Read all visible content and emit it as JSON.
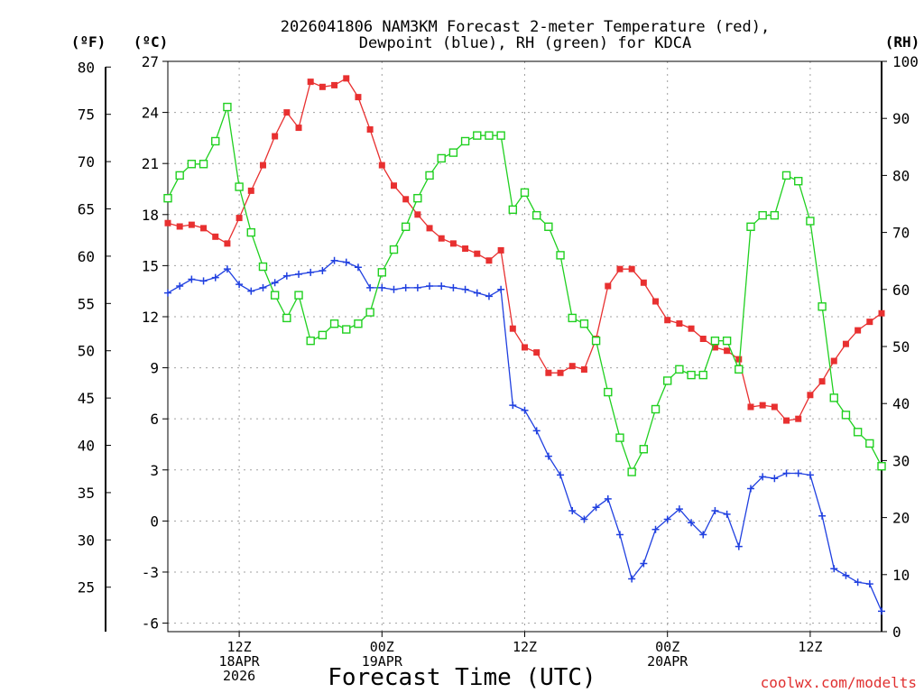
{
  "chart_data": {
    "type": "line",
    "title": "2026041806 NAM3KM Forecast 2-meter Temperature (red), Dewpoint (blue), RH (green) for KDCA",
    "title_lines": [
      "2026041806 NAM3KM Forecast 2-meter Temperature (red),",
      "Dewpoint (blue), RH (green) for KDCA"
    ],
    "xlabel": "Forecast Time (UTC)",
    "unit_labels": {
      "fahrenheit": "(ºF)",
      "celsius": "(ºC)",
      "rh": "(RH)"
    },
    "xlim_hours": [
      0,
      60
    ],
    "x_ticks": [
      {
        "hour": 6,
        "lines": [
          "12Z",
          "18APR",
          "2026"
        ]
      },
      {
        "hour": 18,
        "lines": [
          "00Z",
          "19APR"
        ]
      },
      {
        "hour": 30,
        "lines": [
          "12Z"
        ]
      },
      {
        "hour": 42,
        "lines": [
          "00Z",
          "20APR"
        ]
      },
      {
        "hour": 54,
        "lines": [
          "12Z"
        ]
      }
    ],
    "celsius_axis": {
      "ylim": [
        -6.5,
        27
      ],
      "ticks": [
        27,
        24,
        21,
        18,
        15,
        12,
        9,
        6,
        3,
        0,
        -3,
        -6
      ]
    },
    "fahrenheit_axis": {
      "ticks": [
        80,
        75,
        70,
        65,
        60,
        55,
        50,
        45,
        40,
        35,
        30,
        25
      ]
    },
    "rh_axis": {
      "ylim": [
        0,
        100
      ],
      "ticks": [
        100,
        90,
        80,
        70,
        60,
        50,
        40,
        30,
        20,
        10,
        0
      ]
    },
    "hours": [
      0,
      1,
      2,
      3,
      4,
      5,
      6,
      7,
      8,
      9,
      10,
      11,
      12,
      13,
      14,
      15,
      16,
      17,
      18,
      19,
      20,
      21,
      22,
      23,
      24,
      25,
      26,
      27,
      28,
      29,
      30,
      31,
      32,
      33,
      34,
      35,
      36,
      37,
      38,
      39,
      40,
      41,
      42,
      43,
      44,
      45,
      46,
      47,
      48,
      49,
      50,
      51,
      52,
      53,
      54,
      55,
      56,
      57,
      58,
      59,
      60
    ],
    "series": [
      {
        "name": "2-meter Temperature",
        "color": "#e83030",
        "axis": "celsius",
        "marker": "filled-square",
        "values": [
          17.5,
          17.3,
          17.4,
          17.2,
          16.7,
          16.3,
          17.8,
          19.4,
          20.9,
          22.6,
          24.0,
          23.1,
          25.8,
          25.5,
          25.6,
          26.0,
          24.9,
          23.0,
          20.9,
          19.7,
          18.9,
          18.0,
          17.2,
          16.6,
          16.3,
          16.0,
          15.7,
          15.3,
          15.9,
          11.3,
          10.2,
          9.9,
          8.7,
          8.7,
          9.1,
          8.9,
          10.7,
          13.8,
          14.8,
          14.8,
          14.0,
          12.9,
          11.8,
          11.6,
          11.3,
          10.7,
          10.2,
          10.0,
          9.5,
          6.7,
          6.8,
          6.7,
          5.9,
          6.0,
          7.4,
          8.2,
          9.4,
          10.4,
          11.2,
          11.7,
          12.2
        ]
      },
      {
        "name": "Dewpoint",
        "color": "#2040e0",
        "axis": "celsius",
        "marker": "plus",
        "values": [
          13.4,
          13.8,
          14.2,
          14.1,
          14.3,
          14.8,
          13.9,
          13.5,
          13.7,
          14.0,
          14.4,
          14.5,
          14.6,
          14.7,
          15.3,
          15.2,
          14.9,
          13.7,
          13.7,
          13.6,
          13.7,
          13.7,
          13.8,
          13.8,
          13.7,
          13.6,
          13.4,
          13.2,
          13.6,
          6.8,
          6.5,
          5.3,
          3.8,
          2.7,
          0.6,
          0.1,
          0.8,
          1.3,
          -0.8,
          -3.4,
          -2.5,
          -0.5,
          0.1,
          0.7,
          -0.1,
          -0.8,
          0.6,
          0.4,
          -1.5,
          1.9,
          2.6,
          2.5,
          2.8,
          2.8,
          2.7,
          0.3,
          -2.8,
          -3.2,
          -3.6,
          -3.7,
          -5.3
        ]
      },
      {
        "name": "RH",
        "color": "#20d020",
        "axis": "rh",
        "marker": "open-square",
        "values": [
          76,
          80,
          82,
          82,
          86,
          92,
          78,
          70,
          64,
          59,
          55,
          59,
          51,
          52,
          54,
          53,
          54,
          56,
          63,
          67,
          71,
          76,
          80,
          83,
          84,
          86,
          87,
          87,
          87,
          74,
          77,
          73,
          71,
          66,
          55,
          54,
          51,
          42,
          34,
          28,
          32,
          39,
          44,
          46,
          45,
          45,
          51,
          51,
          46,
          71,
          73,
          73,
          80,
          79,
          72,
          57,
          41,
          38,
          35,
          33,
          29
        ]
      }
    ]
  },
  "watermark": "coolwx.com/modelts"
}
